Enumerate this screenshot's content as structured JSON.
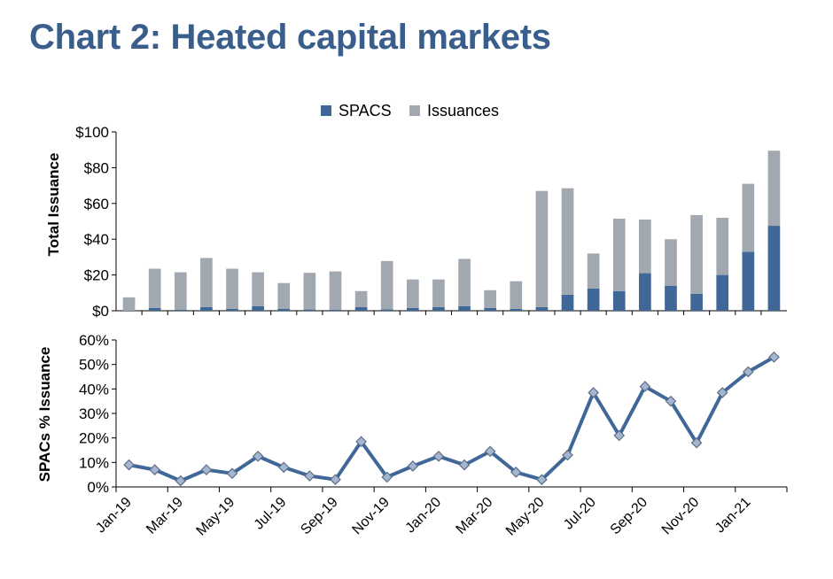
{
  "title": "Chart 2: Heated capital markets",
  "colors": {
    "spacs": "#3f6797",
    "issuances": "#a1a8b0",
    "line": "#3f6797",
    "marker": "#a4b6d2",
    "title": "#3a5e8c"
  },
  "chart_data": [
    {
      "type": "bar",
      "stacked": true,
      "legend": {
        "position": "top",
        "entries": [
          "SPACS",
          "Issuances"
        ]
      },
      "ylabel": "Total Issuance",
      "ylim": [
        0,
        100
      ],
      "yticks": [
        "$0",
        "$20",
        "$40",
        "$60",
        "$80",
        "$100"
      ],
      "grid": false,
      "categories": [
        "Jan-19",
        "Feb-19",
        "Mar-19",
        "Apr-19",
        "May-19",
        "Jun-19",
        "Jul-19",
        "Aug-19",
        "Sep-19",
        "Oct-19",
        "Nov-19",
        "Dec-19",
        "Jan-20",
        "Feb-20",
        "Mar-20",
        "Apr-20",
        "May-20",
        "Jun-20",
        "Jul-20",
        "Aug-20",
        "Sep-20",
        "Oct-20",
        "Nov-20",
        "Dec-20",
        "Jan-21",
        "Feb-21"
      ],
      "series": [
        {
          "name": "SPACS",
          "values": [
            0,
            1.5,
            0.5,
            2,
            1,
            2.5,
            1,
            0.7,
            0.5,
            2,
            0.8,
            1.5,
            2,
            2.5,
            1.5,
            1,
            2,
            9,
            12.5,
            11,
            21,
            14,
            9.5,
            20,
            33,
            47.5
          ]
        },
        {
          "name": "Issuances",
          "values": [
            7.5,
            22,
            21,
            27.5,
            22.5,
            19,
            14.5,
            20.5,
            21.5,
            9,
            27,
            16,
            15.5,
            26.5,
            10,
            15.5,
            65,
            59.5,
            19.5,
            40.5,
            30,
            26,
            44,
            32,
            38,
            42
          ]
        }
      ]
    },
    {
      "type": "line",
      "ylabel": "SPACs % Issuance",
      "ylim": [
        0,
        60
      ],
      "yticks": [
        "0%",
        "10%",
        "20%",
        "30%",
        "40%",
        "50%",
        "60%"
      ],
      "xtick_labels": [
        "Jan-19",
        "Mar-19",
        "May-19",
        "Jul-19",
        "Sep-19",
        "Nov-19",
        "Jan-20",
        "Mar-20",
        "May-20",
        "Jul-20",
        "Sep-20",
        "Nov-20",
        "Jan-21"
      ],
      "grid": false,
      "x": [
        "Jan-19",
        "Feb-19",
        "Mar-19",
        "Apr-19",
        "May-19",
        "Jun-19",
        "Jul-19",
        "Aug-19",
        "Sep-19",
        "Oct-19",
        "Nov-19",
        "Dec-19",
        "Jan-20",
        "Feb-20",
        "Mar-20",
        "Apr-20",
        "May-20",
        "Jun-20",
        "Jul-20",
        "Aug-20",
        "Sep-20",
        "Oct-20",
        "Nov-20",
        "Dec-20",
        "Jan-21",
        "Feb-21"
      ],
      "series": [
        {
          "values": [
            9,
            7,
            2.5,
            7,
            5.5,
            12.5,
            8,
            4.5,
            3,
            18.5,
            4,
            8.5,
            12.5,
            9,
            14.5,
            6,
            3,
            13,
            38.5,
            21,
            41,
            35,
            18,
            38.5,
            47,
            53
          ]
        }
      ]
    }
  ]
}
